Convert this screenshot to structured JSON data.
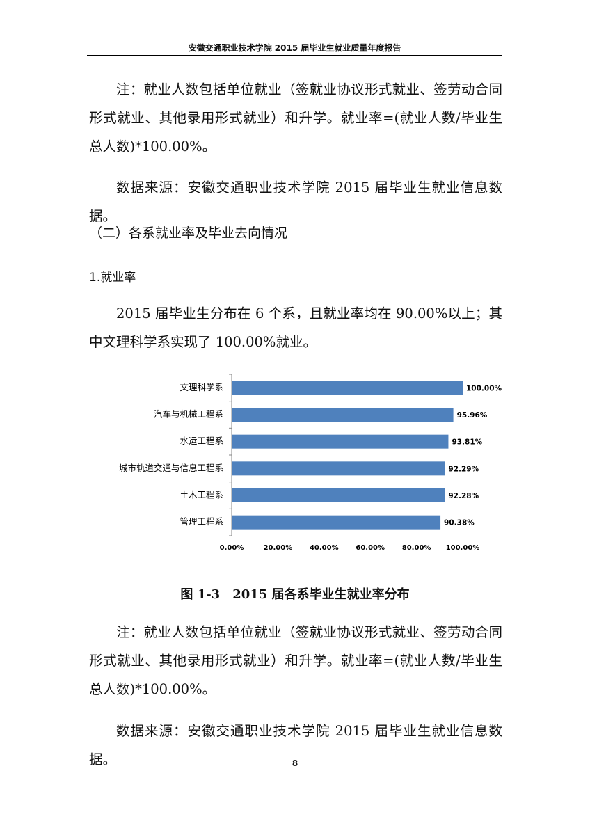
{
  "header": "安徽交通职业技术学院 2015 届毕业生就业质量年度报告",
  "body": [
    "注：就业人数包括单位就业（签就业协议形式就业、签劳动合同形式就业、其他录用形式就业）和升学。就业率=(就业人数/毕业生总人数)*100.00%。",
    "数据来源：安徽交通职业技术学院 2015 届毕业生就业信息数据。"
  ],
  "section_heading": "（二）各系就业率及毕业去向情况",
  "subsection_heading": "1.就业率",
  "intro": "2015 届毕业生分布在 6 个系，且就业率均在 90.00%以上；其中文理科学系实现了 100.00%就业。",
  "chart_data": {
    "type": "bar",
    "orientation": "horizontal",
    "title": "图 1-3　2015 届各系毕业生就业率分布",
    "categories": [
      "文理科学系",
      "汽车与机械工程系",
      "水运工程系",
      "城市轨道交通与信息工程系",
      "土木工程系",
      "管理工程系"
    ],
    "values": [
      100,
      95.96,
      93.81,
      92.29,
      92.28,
      90.38
    ],
    "value_labels": [
      "100.00%",
      "95.96%",
      "93.81%",
      "92.29%",
      "92.28%",
      "90.38%"
    ],
    "color": "#4f81bd",
    "xlim": [
      0,
      100
    ],
    "xticks": [
      {
        "value": 0,
        "label": "0.00%"
      },
      {
        "value": 20,
        "label": "20.00%"
      },
      {
        "value": 40,
        "label": "40.00%"
      },
      {
        "value": 60,
        "label": "60.00%"
      },
      {
        "value": 80,
        "label": "80.00%"
      },
      {
        "value": 100,
        "label": "100.00%"
      }
    ]
  },
  "notes": [
    "注：就业人数包括单位就业（签就业协议形式就业、签劳动合同形式就业、其他录用形式就业）和升学。就业率=(就业人数/毕业生总人数)*100.00%。",
    "数据来源：安徽交通职业技术学院 2015 届毕业生就业信息数据。"
  ],
  "page_number": "8"
}
